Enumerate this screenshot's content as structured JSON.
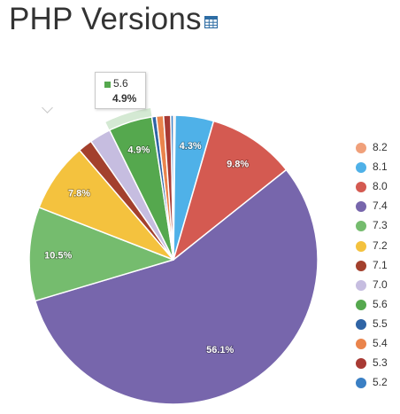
{
  "header": {
    "title": "PHP Versions",
    "table_icon": "table-icon"
  },
  "chart_data": {
    "type": "pie",
    "title": "PHP Versions",
    "legend_position": "right",
    "slices": [
      {
        "name": "8.2",
        "value": 0.2,
        "label": "",
        "color": "#f0a07a"
      },
      {
        "name": "8.1",
        "value": 4.3,
        "label": "4.3%",
        "color": "#4fb1e8"
      },
      {
        "name": "8.0",
        "value": 9.8,
        "label": "9.8%",
        "color": "#d45a51"
      },
      {
        "name": "7.4",
        "value": 56.1,
        "label": "56.1%",
        "color": "#7766ac"
      },
      {
        "name": "7.3",
        "value": 10.5,
        "label": "10.5%",
        "color": "#75bc6e"
      },
      {
        "name": "7.2",
        "value": 7.8,
        "label": "7.8%",
        "color": "#f4c23e"
      },
      {
        "name": "7.1",
        "value": 1.6,
        "label": "",
        "color": "#a3402d"
      },
      {
        "name": "7.0",
        "value": 2.4,
        "label": "",
        "color": "#c6bde0"
      },
      {
        "name": "5.6",
        "value": 4.9,
        "label": "4.9%",
        "color": "#55a84e"
      },
      {
        "name": "5.5",
        "value": 0.5,
        "label": "",
        "color": "#2f64a5"
      },
      {
        "name": "5.4",
        "value": 0.8,
        "label": "",
        "color": "#ea844c"
      },
      {
        "name": "5.3",
        "value": 0.8,
        "label": "",
        "color": "#a83a34"
      },
      {
        "name": "5.2",
        "value": 0.3,
        "label": "",
        "color": "#3a7fc4"
      }
    ],
    "highlighted": "5.6"
  },
  "tooltip": {
    "name": "5.6",
    "value": "4.9%",
    "color": "#55a84e"
  }
}
